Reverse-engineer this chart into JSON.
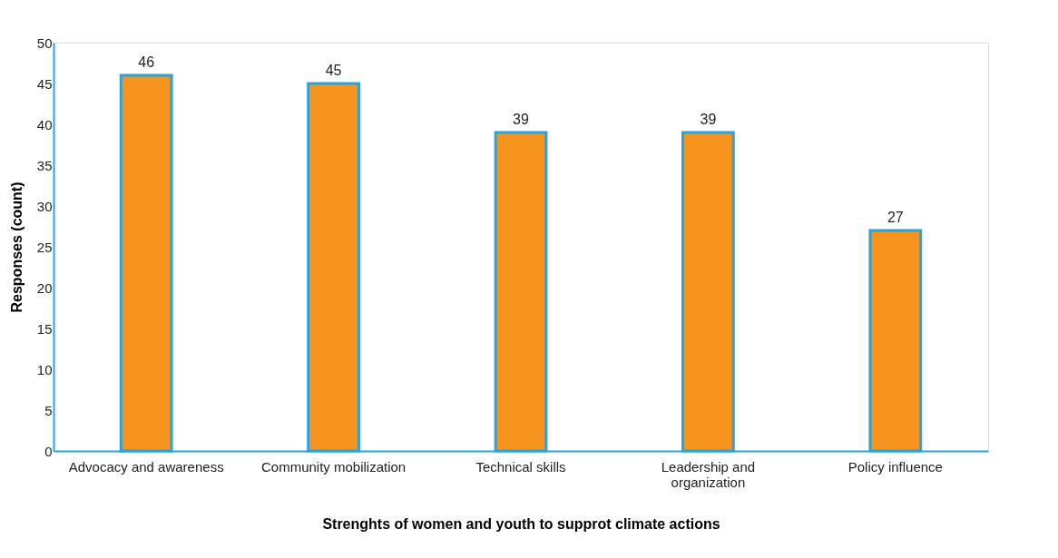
{
  "chart_data": {
    "type": "bar",
    "xlabel": "Strenghts of women and youth to supprot climate actions",
    "ylabel": "Responses (count)",
    "categories": [
      "Advocacy and awareness",
      "Community mobilization",
      "Technical skills",
      "Leadership and organization",
      "Policy influence"
    ],
    "values": [
      46,
      45,
      39,
      39,
      27
    ],
    "color": "#f7941d",
    "ylim": [
      0,
      50
    ],
    "yticks": [
      0,
      5,
      10,
      15,
      20,
      25,
      30,
      35,
      40,
      45,
      50
    ],
    "grid": false,
    "data_labels": true
  }
}
